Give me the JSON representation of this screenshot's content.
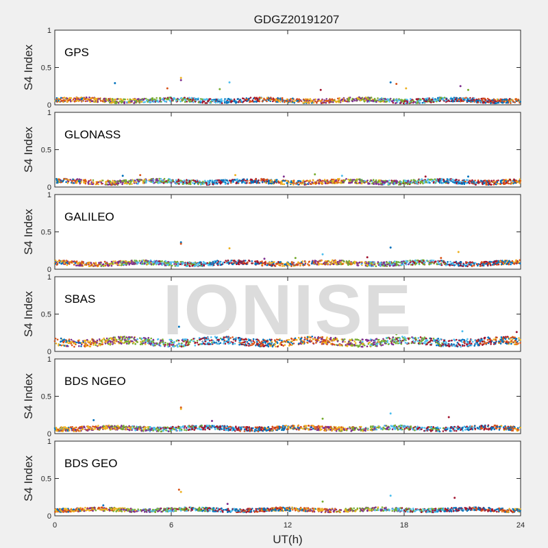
{
  "chart_data": {
    "type": "scatter",
    "title": "GDGZ20191207",
    "xlabel": "UT(h)",
    "ylabel": "S4 Index",
    "xlim": [
      0,
      24
    ],
    "ylim": [
      0,
      1
    ],
    "xticks": [
      "0",
      "6",
      "12",
      "18",
      "24"
    ],
    "yticks": [
      "0",
      "0.5",
      "1"
    ],
    "watermark": "IONISE",
    "series_colors": [
      "#0072bd",
      "#d95319",
      "#edb120",
      "#7e2f8e",
      "#77ac30",
      "#4dbeee",
      "#a2142f"
    ],
    "panels": [
      {
        "label": "GPS",
        "baseline": 0.06,
        "spread": 0.03,
        "spikes": [
          [
            3.1,
            0.29
          ],
          [
            5.8,
            0.22
          ],
          [
            6.5,
            0.36
          ],
          [
            6.5,
            0.33
          ],
          [
            8.5,
            0.21
          ],
          [
            9.0,
            0.3
          ],
          [
            13.7,
            0.2
          ],
          [
            17.3,
            0.3
          ],
          [
            17.6,
            0.28
          ],
          [
            18.1,
            0.22
          ],
          [
            20.9,
            0.25
          ],
          [
            21.3,
            0.2
          ]
        ]
      },
      {
        "label": "GLONASS",
        "baseline": 0.07,
        "spread": 0.03,
        "spikes": [
          [
            3.5,
            0.15
          ],
          [
            4.4,
            0.16
          ],
          [
            9.3,
            0.16
          ],
          [
            11.8,
            0.14
          ],
          [
            13.4,
            0.17
          ],
          [
            14.8,
            0.15
          ],
          [
            19.1,
            0.14
          ],
          [
            21.3,
            0.14
          ]
        ]
      },
      {
        "label": "GALILEO",
        "baseline": 0.08,
        "spread": 0.03,
        "spikes": [
          [
            6.5,
            0.36
          ],
          [
            6.5,
            0.34
          ],
          [
            9.0,
            0.28
          ],
          [
            10.8,
            0.14
          ],
          [
            12.4,
            0.15
          ],
          [
            13.8,
            0.2
          ],
          [
            16.1,
            0.16
          ],
          [
            17.3,
            0.29
          ],
          [
            19.9,
            0.15
          ],
          [
            20.8,
            0.23
          ]
        ]
      },
      {
        "label": "SBAS",
        "baseline": 0.13,
        "spread": 0.05,
        "spikes": [
          [
            6.4,
            0.33
          ],
          [
            8.9,
            0.3
          ],
          [
            11.4,
            0.25
          ],
          [
            17.2,
            0.28
          ],
          [
            17.6,
            0.23
          ],
          [
            21.0,
            0.27
          ],
          [
            23.8,
            0.26
          ]
        ]
      },
      {
        "label": "BDS NGEO",
        "baseline": 0.07,
        "spread": 0.03,
        "spikes": [
          [
            2.0,
            0.18
          ],
          [
            6.5,
            0.35
          ],
          [
            6.5,
            0.33
          ],
          [
            8.1,
            0.17
          ],
          [
            13.8,
            0.2
          ],
          [
            17.3,
            0.27
          ],
          [
            20.3,
            0.22
          ]
        ]
      },
      {
        "label": "BDS GEO",
        "baseline": 0.08,
        "spread": 0.025,
        "spikes": [
          [
            2.5,
            0.14
          ],
          [
            6.4,
            0.35
          ],
          [
            6.5,
            0.32
          ],
          [
            8.9,
            0.16
          ],
          [
            13.8,
            0.19
          ],
          [
            17.3,
            0.27
          ],
          [
            20.6,
            0.24
          ]
        ]
      }
    ]
  }
}
